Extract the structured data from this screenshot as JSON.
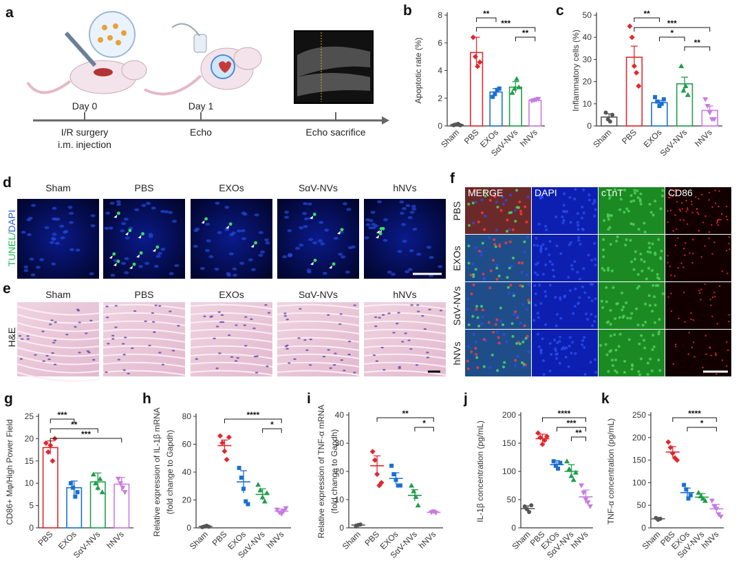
{
  "panel_a": {
    "letter": "a",
    "timeline": [
      {
        "day": "Day 0",
        "event": "I/R surgery\ni.m. injection"
      },
      {
        "day": "Day 1",
        "event": "Echo"
      },
      {
        "day": "",
        "event": "Echo sacrifice"
      }
    ]
  },
  "micro_d": {
    "letter": "d",
    "ylabel_a": "TUNEL/",
    "ylabel_b": "DAPI",
    "columns": [
      "Sham",
      "PBS",
      "EXOs",
      "SαV-NVs",
      "hNVs"
    ]
  },
  "micro_e": {
    "letter": "e",
    "ylabel": "H&E",
    "columns": [
      "Sham",
      "PBS",
      "EXOs",
      "SαV-NVs",
      "hNVs"
    ]
  },
  "micro_f": {
    "letter": "f",
    "channels": [
      "MERGE",
      "DAPI",
      "cTnT",
      "CD86"
    ],
    "rows": [
      "PBS",
      "EXOs",
      "SαV-NVs",
      "hNVs"
    ]
  },
  "colors": {
    "Sham": "#555555",
    "PBS": "#e0282e",
    "EXOs": "#1a6fd1",
    "SαV-NVs": "#1f9e4b",
    "hNVs": "#c77be0"
  },
  "chart_data": [
    {
      "panel": "b",
      "type": "bar",
      "ylabel": "Apoptotic rate (%)",
      "ylim": [
        0,
        8
      ],
      "yticks": [
        0,
        2,
        4,
        6,
        8
      ],
      "categories": [
        "Sham",
        "PBS",
        "EXOs",
        "SαV-NVs",
        "hNVs"
      ],
      "values": [
        0.1,
        5.3,
        2.45,
        2.8,
        1.85
      ],
      "errors": [
        0.08,
        1.1,
        0.25,
        0.4,
        0.1
      ],
      "points": [
        [
          0.05,
          0.1,
          0.15,
          0.05
        ],
        [
          6.4,
          5.0,
          4.3,
          4.6
        ],
        [
          2.1,
          2.3,
          2.6,
          2.7
        ],
        [
          2.4,
          2.7,
          3.4,
          2.8
        ],
        [
          1.8,
          1.85,
          1.9,
          1.95
        ]
      ],
      "significance": [
        {
          "from": 1,
          "to": 2,
          "label": "**"
        },
        {
          "from": 1,
          "to": 4,
          "label": "***"
        },
        {
          "from": 3,
          "to": 4,
          "label": "**"
        }
      ]
    },
    {
      "panel": "c",
      "type": "bar",
      "ylabel": "Inflammatory cells (%)",
      "ylim": [
        0,
        50
      ],
      "yticks": [
        0,
        10,
        20,
        30,
        40,
        50
      ],
      "categories": [
        "Sham",
        "PBS",
        "EXOs",
        "SαV-NVs",
        "hNVs"
      ],
      "values": [
        4,
        31,
        10.5,
        19,
        7
      ],
      "errors": [
        1.5,
        5,
        1,
        3,
        2
      ],
      "points": [
        [
          6,
          3,
          2,
          5
        ],
        [
          45,
          40,
          27,
          24,
          18
        ],
        [
          13,
          11,
          9,
          10,
          12
        ],
        [
          27,
          16,
          18,
          14
        ],
        [
          12,
          9,
          6,
          3,
          3
        ]
      ],
      "significance": [
        {
          "from": 1,
          "to": 2,
          "label": "**"
        },
        {
          "from": 1,
          "to": 4,
          "label": "***"
        },
        {
          "from": 2,
          "to": 3,
          "label": "*"
        },
        {
          "from": 3,
          "to": 4,
          "label": "**"
        }
      ]
    },
    {
      "panel": "g",
      "type": "bar",
      "ylabel": "CD86+ Mφ/High Power Field",
      "ylim": [
        0,
        25
      ],
      "yticks": [
        0,
        5,
        10,
        15,
        20,
        25
      ],
      "categories": [
        "PBS",
        "EXOs",
        "SαV-NVs",
        "hNVs"
      ],
      "values": [
        18,
        9,
        10.3,
        9.8
      ],
      "errors": [
        1.5,
        1.5,
        2,
        1.5
      ],
      "points": [
        [
          19,
          17,
          18.5,
          15,
          20
        ],
        [
          10,
          9,
          7,
          8
        ],
        [
          12,
          10,
          9,
          11,
          8
        ],
        [
          11,
          10,
          9,
          8
        ]
      ],
      "significance": [
        {
          "from": 0,
          "to": 1,
          "label": "***"
        },
        {
          "from": 0,
          "to": 2,
          "label": "**"
        },
        {
          "from": 0,
          "to": 3,
          "label": "***"
        }
      ]
    },
    {
      "panel": "h",
      "type": "scatter",
      "ylabel": "Relative expression of IL-1β mRNA",
      "ylabel2": "(fold change to Gapdh)",
      "ylim": [
        0,
        80
      ],
      "yticks": [
        0,
        20,
        40,
        60,
        80
      ],
      "categories": [
        "Sham",
        "PBS",
        "EXOs",
        "SαV-NVs",
        "hNVs"
      ],
      "values": [
        1,
        59,
        33,
        24,
        12
      ],
      "errors": [
        0.5,
        4,
        8,
        4,
        1.5
      ],
      "points": [
        [
          0.5,
          1,
          1.5,
          0.8
        ],
        [
          66,
          61,
          55,
          49,
          65
        ],
        [
          43,
          36,
          28,
          19,
          17
        ],
        [
          31,
          27,
          22,
          19,
          25
        ],
        [
          13,
          11,
          10,
          12,
          14
        ]
      ],
      "significance": [
        {
          "from": 1,
          "to": 4,
          "label": "****"
        },
        {
          "from": 3,
          "to": 4,
          "label": "*"
        }
      ]
    },
    {
      "panel": "i",
      "type": "scatter",
      "ylabel": "Relative expression of TNF-α mRNA",
      "ylabel2": "(fold change to Gapdh)",
      "ylim": [
        0,
        40
      ],
      "yticks": [
        0,
        10,
        20,
        30,
        40
      ],
      "categories": [
        "Sham",
        "PBS",
        "EXOs",
        "SαV-NVs",
        "hNVs"
      ],
      "values": [
        1,
        22,
        17.5,
        11.5,
        5.5
      ],
      "errors": [
        0.3,
        3.5,
        2,
        2,
        0.4
      ],
      "points": [
        [
          0.5,
          1,
          1.2
        ],
        [
          27,
          24,
          19,
          15,
          16
        ],
        [
          22,
          19,
          17,
          15,
          15
        ],
        [
          15,
          13,
          11,
          8
        ],
        [
          5.5,
          5.8,
          5.3
        ]
      ],
      "significance": [
        {
          "from": 1,
          "to": 4,
          "label": "**"
        },
        {
          "from": 3,
          "to": 4,
          "label": "*"
        }
      ]
    },
    {
      "panel": "j",
      "type": "scatter",
      "ylabel": "IL-1β concentration (pg/mL)",
      "ylim": [
        0,
        200
      ],
      "yticks": [
        0,
        50,
        100,
        150,
        200
      ],
      "categories": [
        "Sham",
        "PBS",
        "EXOs",
        "SαV-NVs",
        "hNVs"
      ],
      "values": [
        34,
        158,
        112,
        100,
        55
      ],
      "errors": [
        5,
        8,
        7,
        12,
        12
      ],
      "points": [
        [
          38,
          33,
          28,
          40
        ],
        [
          168,
          160,
          148,
          155,
          162
        ],
        [
          118,
          110,
          105,
          115
        ],
        [
          118,
          104,
          92,
          85,
          98
        ],
        [
          75,
          62,
          50,
          45,
          38
        ]
      ],
      "significance": [
        {
          "from": 1,
          "to": 4,
          "label": "****"
        },
        {
          "from": 2,
          "to": 4,
          "label": "***"
        },
        {
          "from": 3,
          "to": 4,
          "label": "**"
        }
      ]
    },
    {
      "panel": "k",
      "type": "scatter",
      "ylabel": "TNF-α concentration (pg/mL)",
      "ylim": [
        0,
        250
      ],
      "yticks": [
        0,
        50,
        100,
        150,
        200,
        250
      ],
      "categories": [
        "Sham",
        "PBS",
        "EXOs",
        "SαV-NVs",
        "hNVs"
      ],
      "values": [
        20,
        168,
        78,
        68,
        42
      ],
      "errors": [
        3,
        12,
        10,
        8,
        10
      ],
      "points": [
        [
          22,
          18,
          20
        ],
        [
          190,
          178,
          165,
          155,
          150
        ],
        [
          95,
          85,
          65,
          72
        ],
        [
          78,
          70,
          65,
          60
        ],
        [
          60,
          48,
          42,
          30,
          25
        ]
      ],
      "significance": [
        {
          "from": 1,
          "to": 4,
          "label": "****"
        },
        {
          "from": 2,
          "to": 4,
          "label": "*"
        }
      ]
    }
  ]
}
